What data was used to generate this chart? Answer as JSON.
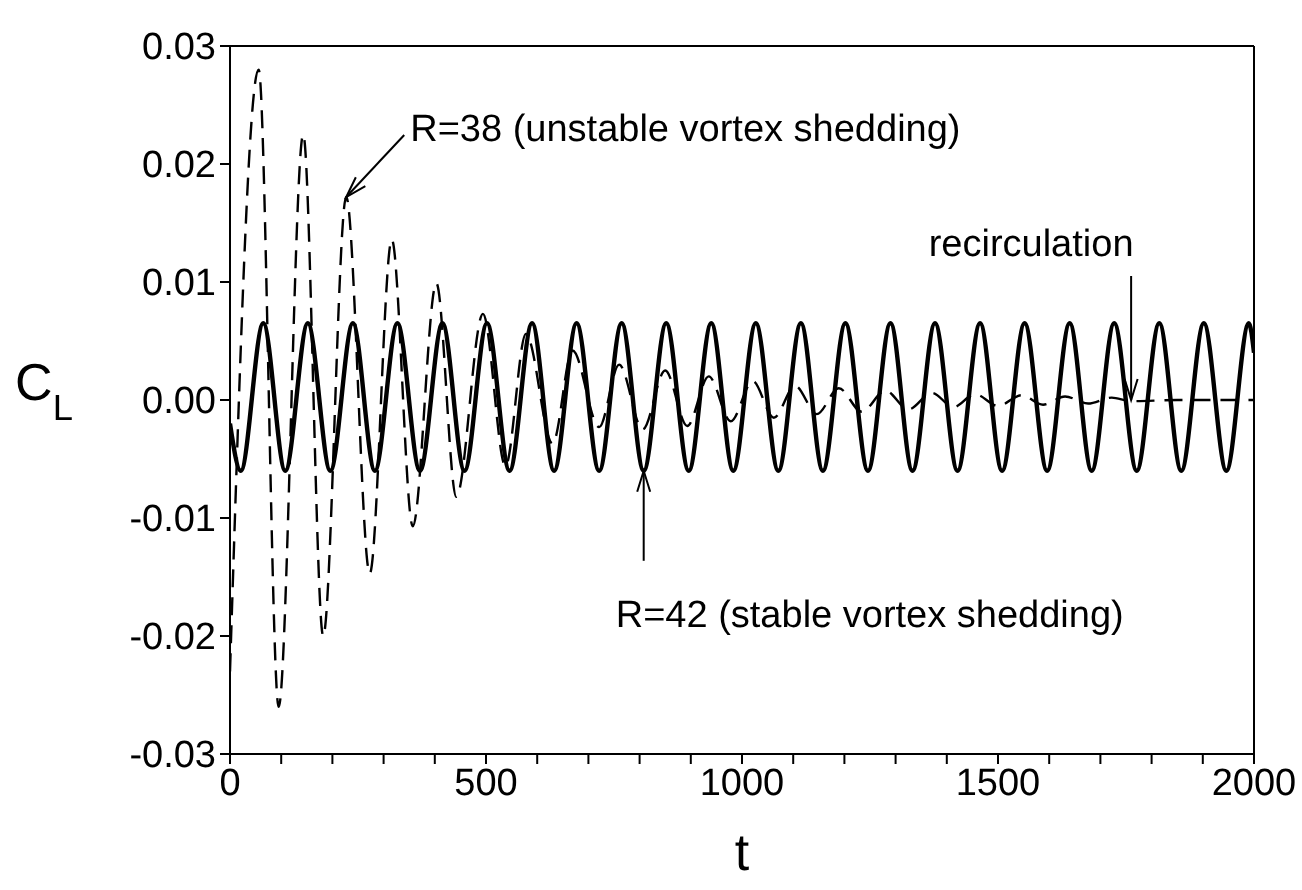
{
  "chart_data": {
    "type": "line",
    "xlabel": "t",
    "ylabel": "C$_{L}$",
    "xlim": [
      0,
      2000
    ],
    "ylim": [
      -0.03,
      0.03
    ],
    "xticks": [
      0,
      {
        "value": 100,
        "label": null
      },
      {
        "value": 200,
        "label": null
      },
      {
        "value": 300,
        "label": null
      },
      {
        "value": 400,
        "label": null
      },
      500,
      {
        "value": 600,
        "label": null
      },
      {
        "value": 700,
        "label": null
      },
      {
        "value": 800,
        "label": null
      },
      {
        "value": 900,
        "label": null
      },
      1000,
      {
        "value": 1100,
        "label": null
      },
      {
        "value": 1200,
        "label": null
      },
      {
        "value": 1300,
        "label": null
      },
      {
        "value": 1400,
        "label": null
      },
      1500,
      {
        "value": 1600,
        "label": null
      },
      {
        "value": 1700,
        "label": null
      },
      {
        "value": 1800,
        "label": null
      },
      {
        "value": 1900,
        "label": null
      },
      2000
    ],
    "yticks": [
      {
        "value": -0.03,
        "label": "-0.03"
      },
      {
        "value": -0.02,
        "label": "-0.02"
      },
      {
        "value": -0.01,
        "label": "-0.01"
      },
      {
        "value": 0,
        "label": "0.00"
      },
      {
        "value": 0.01,
        "label": "0.01"
      },
      {
        "value": 0.02,
        "label": "0.02"
      },
      {
        "value": 0.03,
        "label": "0.03"
      }
    ],
    "legend": false,
    "marker": "none",
    "series": [
      {
        "color": "#000000",
        "line_style": "solid",
        "x": [
          0,
          21,
          65,
          108,
          152,
          196,
          240,
          283,
          327,
          371,
          415,
          458,
          502,
          546,
          590,
          633,
          677,
          721,
          765,
          808,
          852,
          896,
          940,
          983,
          1027,
          1071,
          1115,
          1158,
          1202,
          1246,
          1290,
          1333,
          1377,
          1421,
          1465,
          1508,
          1552,
          1596,
          1640,
          1683,
          1727,
          1771,
          1815,
          1858,
          1902,
          1946,
          1990,
          2000
        ],
        "values": [
          -0.002,
          -0.006,
          0.0065,
          -0.006,
          0.0065,
          -0.006,
          0.0065,
          -0.006,
          0.0065,
          -0.006,
          0.0065,
          -0.006,
          0.0065,
          -0.006,
          0.0065,
          -0.006,
          0.0065,
          -0.006,
          0.0065,
          -0.006,
          0.0065,
          -0.006,
          0.0065,
          -0.006,
          0.0065,
          -0.006,
          0.0065,
          -0.006,
          0.0065,
          -0.006,
          0.0065,
          -0.006,
          0.0065,
          -0.006,
          0.0065,
          -0.006,
          0.0065,
          -0.006,
          0.0065,
          -0.006,
          0.0065,
          -0.006,
          0.0065,
          -0.006,
          0.0065,
          -0.006,
          0.0065,
          0.004
        ]
      },
      {
        "color": "#000000",
        "line_style": "dashed",
        "x": [
          0,
          56,
          95,
          143,
          182,
          227,
          273,
          316,
          357,
          403,
          442,
          494,
          538,
          578,
          630,
          669,
          721,
          760,
          806,
          850,
          893,
          935,
          978,
          1021,
          1062,
          1104,
          1146,
          1189,
          1234,
          1280,
          1325,
          1371,
          1413,
          1455,
          1500,
          1546,
          1588,
          1631,
          1676,
          1722,
          1760,
          1850,
          2000
        ],
        "values": [
          -0.023,
          0.028,
          -0.026,
          0.0225,
          -0.02,
          0.0172,
          -0.0147,
          0.0136,
          -0.0107,
          0.0099,
          -0.0082,
          0.0073,
          -0.0056,
          0.0056,
          -0.0037,
          0.0042,
          -0.0023,
          0.003,
          -0.0025,
          0.0025,
          -0.0022,
          0.002,
          -0.0018,
          0.0016,
          -0.0015,
          0.0012,
          -0.0012,
          0.001,
          -0.001,
          0.0008,
          -0.0008,
          0.0006,
          -0.0006,
          0.0005,
          -0.0005,
          0.0004,
          -0.0004,
          0.0003,
          -0.0003,
          0.0002,
          -0.0001,
          0,
          0
        ]
      }
    ],
    "annotations": [
      {
        "text": "R=38 (unstable vortex shedding)",
        "x": 227,
        "y": 0.0172
      },
      {
        "text": "R=42 (stable vortex shedding)",
        "x": 808,
        "y": -0.006
      },
      {
        "text": "recirculation",
        "x": 1760,
        "y": 0
      }
    ]
  }
}
